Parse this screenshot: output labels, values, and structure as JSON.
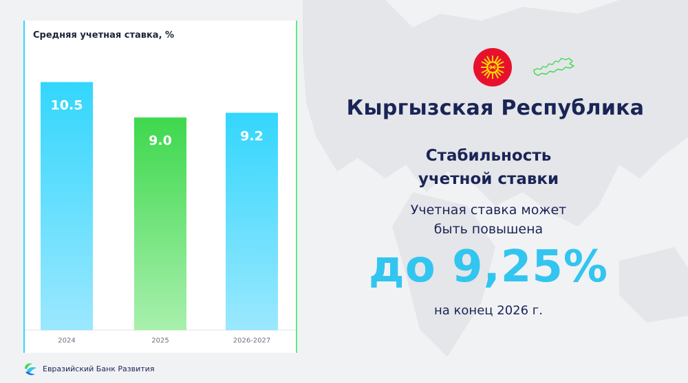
{
  "chart_data": {
    "type": "bar",
    "title": "Средняя учетная ставка, %",
    "categories": [
      "2024",
      "2025",
      "2026-2027"
    ],
    "values": [
      10.5,
      9.0,
      9.2
    ],
    "value_labels": [
      "10.5",
      "9.0",
      "9.2"
    ],
    "xlabel": "",
    "ylabel": "",
    "ylim": [
      0,
      13.1
    ],
    "grid": false,
    "bar_colors": [
      "#33d6fd",
      "#3ed84d",
      "#33d6fd"
    ],
    "bar_colors_bottom": [
      "#9be8fe",
      "#a8f0ad",
      "#9be8fe"
    ]
  },
  "info": {
    "country": "Кыргызская Республика",
    "heading_lines": [
      "Стабильность",
      "учетной ставки"
    ],
    "sub_lines": [
      "Учетная ставка может",
      "быть повышена"
    ],
    "highlight": "до 9,25%",
    "footnote": "на конец 2026 г."
  },
  "footer": {
    "bank_name": "Евразийский Банк Развития"
  },
  "icons": {
    "flag": "kyrgyz-flag-icon",
    "map": "kyrgyzstan-outline-icon",
    "logo": "eabr-logo-icon"
  },
  "colors": {
    "accent_cyan": "#32c5f0",
    "accent_green": "#3ed84d",
    "navy": "#1a2456",
    "flag_red": "#e8112d",
    "flag_sun": "#ffd700"
  }
}
